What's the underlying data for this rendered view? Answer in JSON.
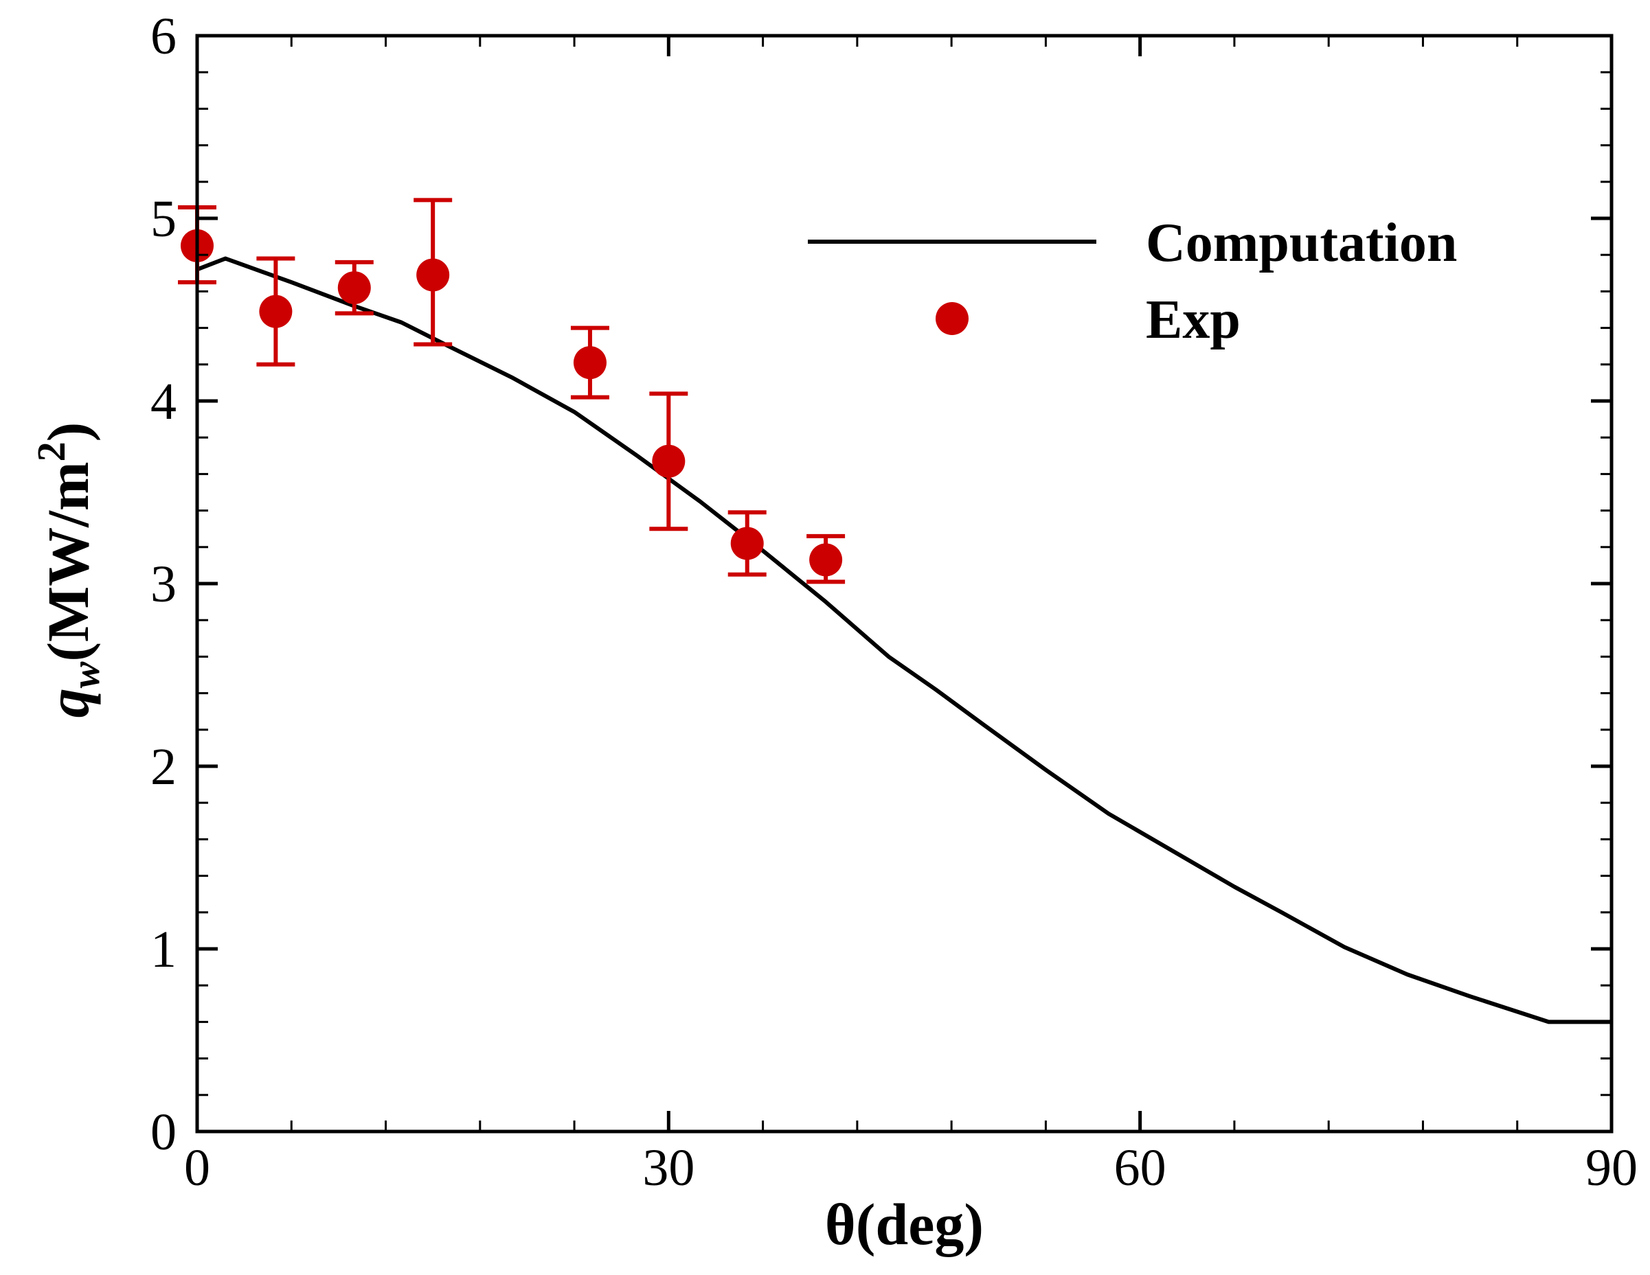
{
  "chart_data": {
    "type": "line",
    "title": "",
    "xlabel": "θ(deg)",
    "ylabel": {
      "symbol": "q",
      "subscript": "w",
      "units": "(MW/m",
      "units_superscript": "2",
      "units_close": ")"
    },
    "xlim": [
      0,
      90
    ],
    "ylim": [
      0,
      6
    ],
    "x_major_ticks": [
      0,
      30,
      60,
      90
    ],
    "y_major_ticks": [
      0,
      1,
      2,
      3,
      4,
      5,
      6
    ],
    "x_minor_step": 6,
    "y_minor_step": 0.2,
    "grid": false,
    "legend_position": "top-right",
    "colors": {
      "computation": "#000000",
      "experiment": "#cc0000",
      "axis": "#000000"
    },
    "series": [
      {
        "name": "Computation",
        "kind": "line",
        "x": [
          0,
          1.8,
          6,
          10,
          13,
          16,
          20,
          24,
          28,
          32,
          36,
          40,
          44,
          47,
          50,
          54,
          58,
          62,
          66,
          69,
          73,
          77,
          81,
          86,
          90
        ],
        "y": [
          4.72,
          4.78,
          4.65,
          4.52,
          4.43,
          4.3,
          4.13,
          3.94,
          3.7,
          3.45,
          3.18,
          2.9,
          2.6,
          2.42,
          2.23,
          1.98,
          1.74,
          1.54,
          1.34,
          1.2,
          1.01,
          0.86,
          0.74,
          0.6,
          0.6
        ]
      },
      {
        "name": "Exp",
        "kind": "scatter",
        "x": [
          0,
          5,
          10,
          15,
          25,
          30,
          35,
          40
        ],
        "y": [
          4.85,
          4.49,
          4.62,
          4.69,
          4.21,
          3.67,
          3.22,
          3.13
        ],
        "err_low": [
          4.65,
          4.2,
          4.48,
          4.31,
          4.02,
          3.3,
          3.05,
          3.01
        ],
        "err_high": [
          5.06,
          4.78,
          4.76,
          5.1,
          4.4,
          4.04,
          3.39,
          3.26
        ]
      }
    ]
  }
}
